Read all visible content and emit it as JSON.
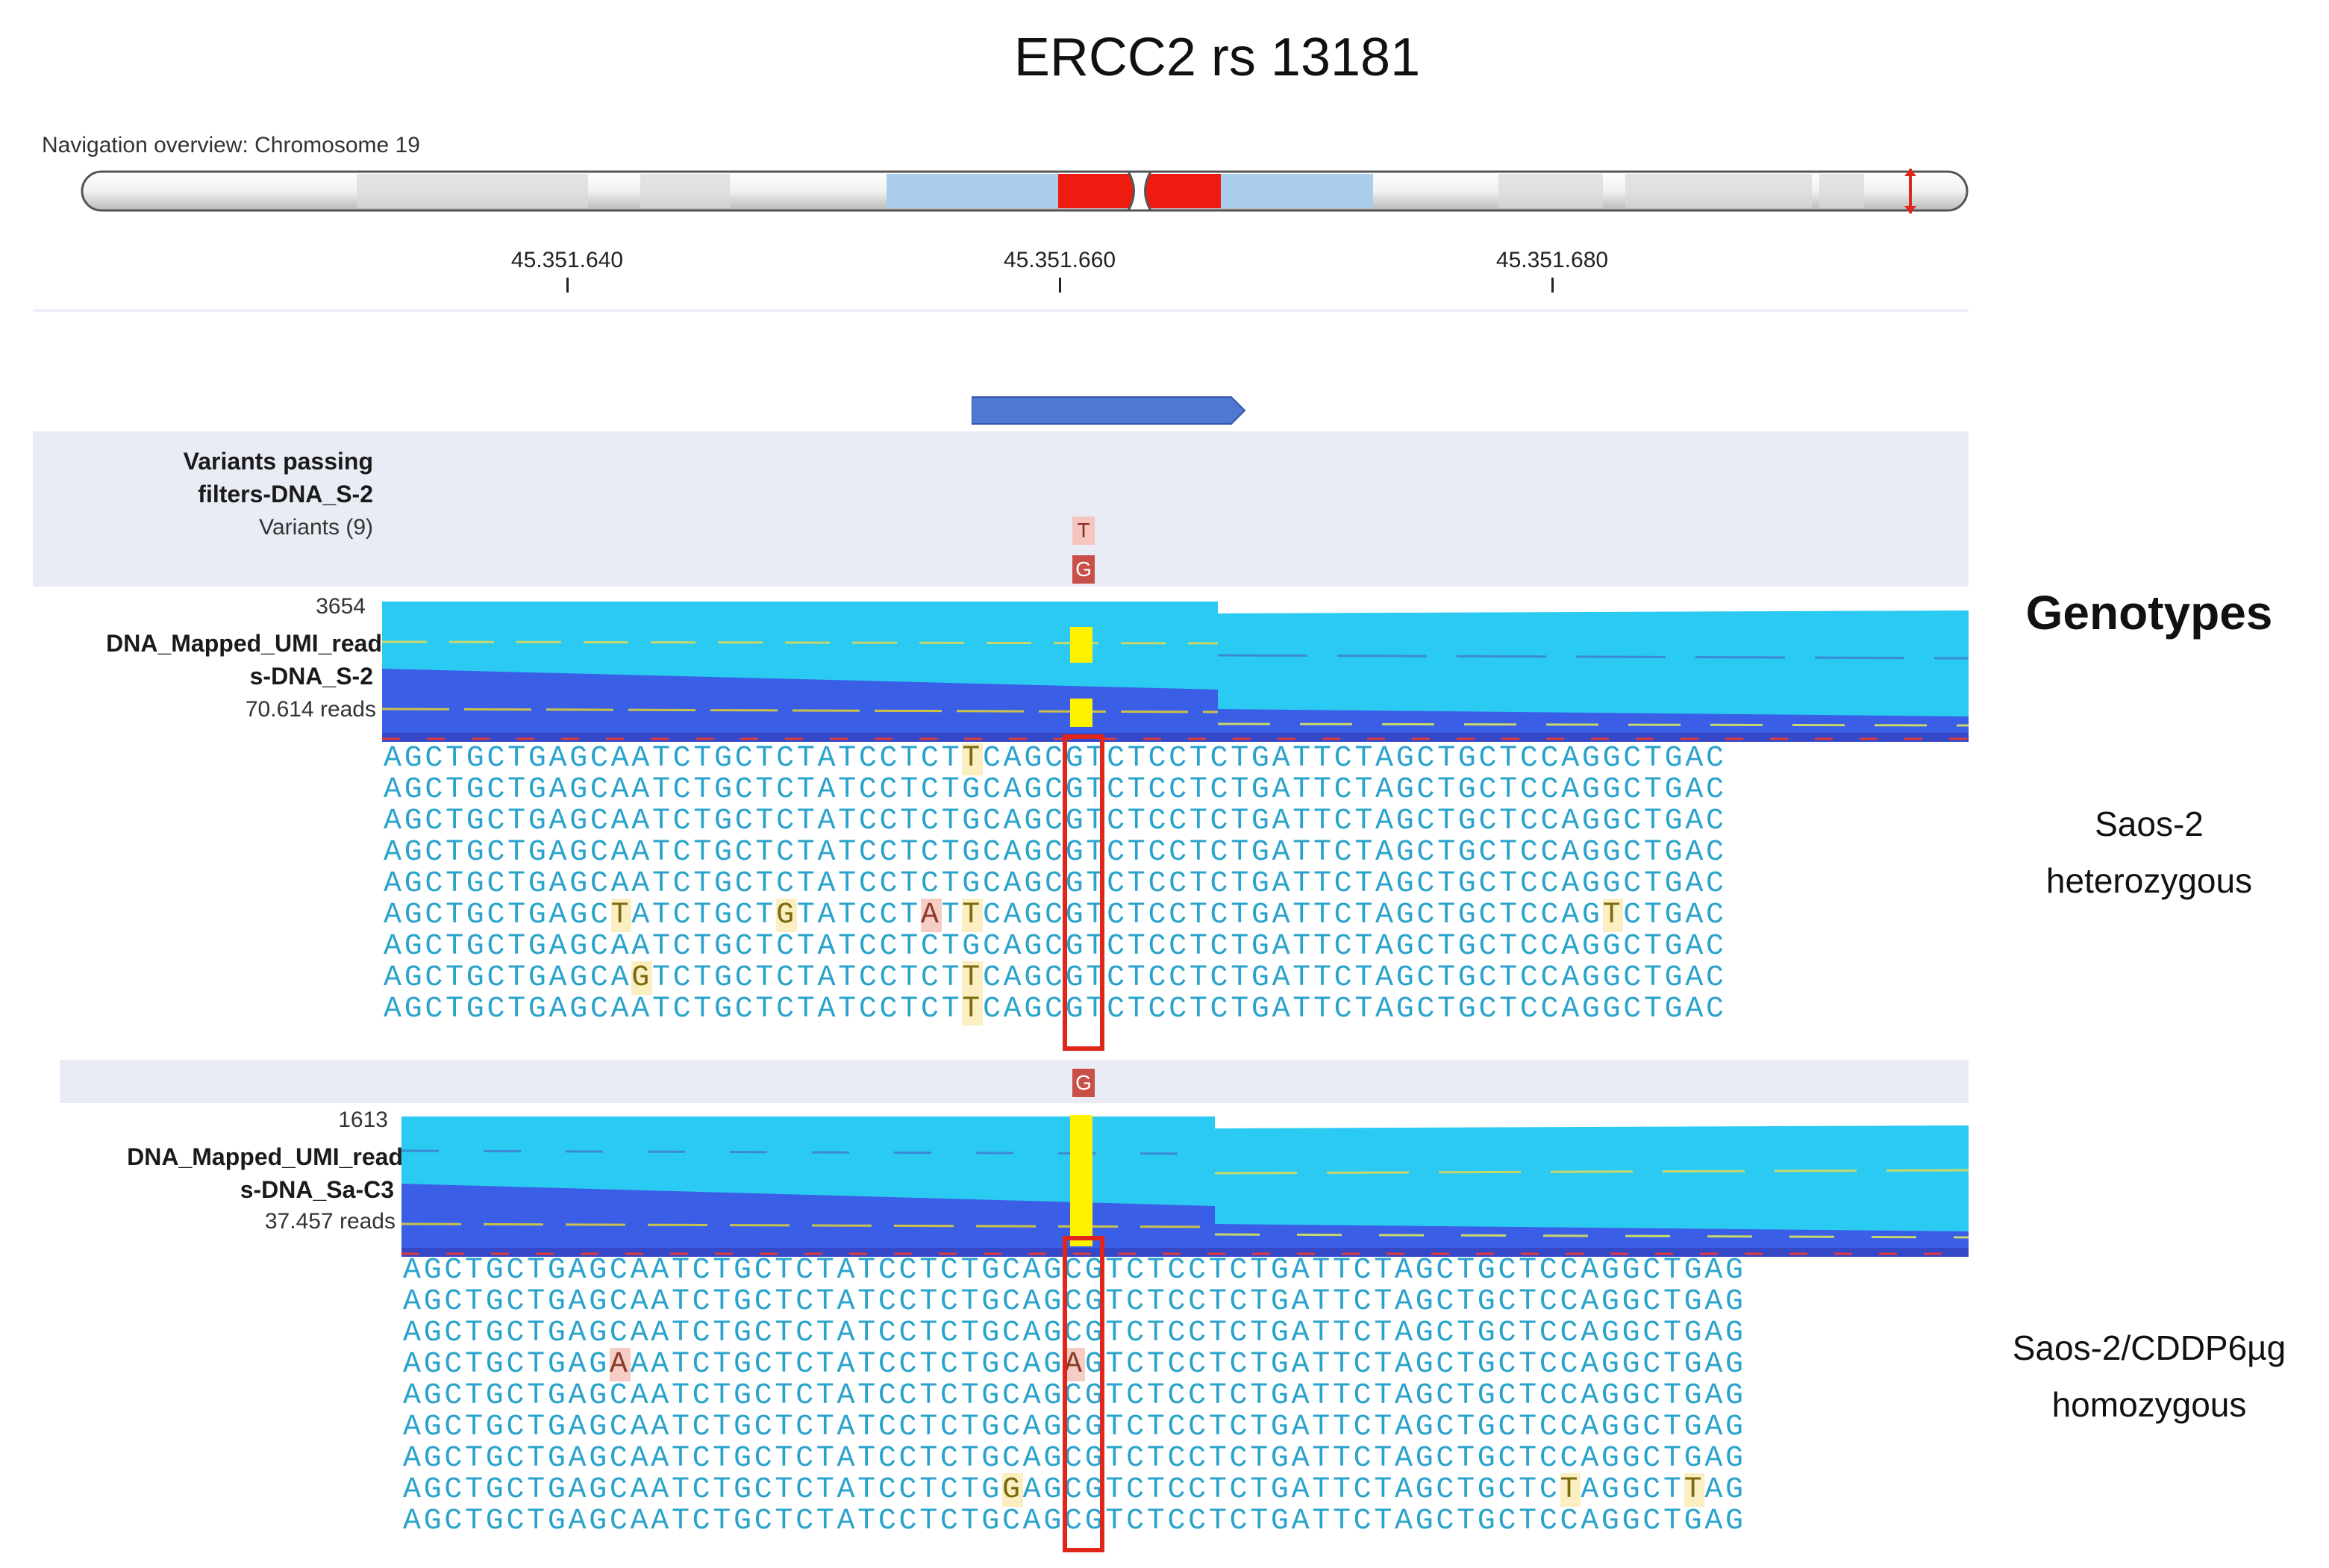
{
  "title": "ERCC2 rs 13181",
  "navigation": {
    "label": "Navigation overview: Chromosome 19",
    "ticks": [
      "45.351.640",
      "45.351.660",
      "45.351.680"
    ]
  },
  "colors": {
    "coverage_light": "#2bcaf2",
    "coverage_dark": "#3a5fe6",
    "variant_highlight": "#fff200",
    "box": "#e0261a",
    "centromere": "#ee1c10",
    "band_blue": "#a9cdea"
  },
  "tracks": {
    "variants": {
      "title_line1": "Variants passing",
      "title_line2": "filters-DNA_S-2",
      "count": "Variants (9)",
      "badge_top": "T",
      "badge_bottom": "G"
    },
    "s2": {
      "max": "3654",
      "name_line1": "DNA_Mapped_UMI_read",
      "name_line2": "s-DNA_S-2",
      "reads": "70.614 reads",
      "sequences": [
        "AGCTGCTGAGCAATCTGCTCTATCCTCTTCAGCGTCTCCTCTGATTCTAGCTGCTCCAGGCTGAC",
        "AGCTGCTGAGCAATCTGCTCTATCCTCTGCAGCGTCTCCTCTGATTCTAGCTGCTCCAGGCTGAC",
        "AGCTGCTGAGCAATCTGCTCTATCCTCTGCAGCGTCTCCTCTGATTCTAGCTGCTCCAGGCTGAC",
        "AGCTGCTGAGCAATCTGCTCTATCCTCTGCAGCGTCTCCTCTGATTCTAGCTGCTCCAGGCTGAC",
        "AGCTGCTGAGCAATCTGCTCTATCCTCTGCAGCGTCTCCTCTGATTCTAGCTGCTCCAGGCTGAC",
        "AGCTGCTGAGCTATCTGCTGTATCCTATTCAGCGTCTCCTCTGATTCTAGCTGCTCCAGTCTGAC",
        "AGCTGCTGAGCAATCTGCTCTATCCTCTGCAGCGTCTCCTCTGATTCTAGCTGCTCCAGGCTGAC",
        "AGCTGCTGAGCAGTCTGCTCTATCCTCTTCAGCGTCTCCTCTGATTCTAGCTGCTCCAGGCTGAC",
        "AGCTGCTGAGCAATCTGCTCTATCCTCTTCAGCGTCTCCTCTGATTCTAGCTGCTCCAGGCTGAC"
      ]
    },
    "sac3": {
      "badge": "G",
      "max": "1613",
      "name_line1": "DNA_Mapped_UMI_read",
      "name_line2": "s-DNA_Sa-C3",
      "reads": "37.457 reads",
      "sequences": [
        "AGCTGCTGAGCAATCTGCTCTATCCTCTGCAGCGTCTCCTCTGATTCTAGCTGCTCCAGGCTGAG",
        "AGCTGCTGAGCAATCTGCTCTATCCTCTGCAGCGTCTCCTCTGATTCTAGCTGCTCCAGGCTGAG",
        "AGCTGCTGAGCAATCTGCTCTATCCTCTGCAGCGTCTCCTCTGATTCTAGCTGCTCCAGGCTGAG",
        "AGCTGCTGAGAAATCTGCTCTATCCTCTGCAGAGTCTCCTCTGATTCTAGCTGCTCCAGGCTGAG",
        "AGCTGCTGAGCAATCTGCTCTATCCTCTGCAGCGTCTCCTCTGATTCTAGCTGCTCCAGGCTGAG",
        "AGCTGCTGAGCAATCTGCTCTATCCTCTGCAGCGTCTCCTCTGATTCTAGCTGCTCCAGGCTGAG",
        "AGCTGCTGAGCAATCTGCTCTATCCTCTGCAGCGTCTCCTCTGATTCTAGCTGCTCCAGGCTGAG",
        "AGCTGCTGAGCAATCTGCTCTATCCTCTGGAGCGTCTCCTCTGATTCTAGCTGCTCTAGGCTTAG",
        "AGCTGCTGAGCAATCTGCTCTATCCTCTGCAGCGTCTCCTCTGATTCTAGCTGCTCCAGGCTGAG"
      ]
    }
  },
  "genotypes": {
    "heading": "Genotypes",
    "group1_line1": "Saos-2",
    "group1_line2": "heterozygous",
    "group2_line1": "Saos-2/CDDP6µg",
    "group2_line2": "homozygous"
  }
}
